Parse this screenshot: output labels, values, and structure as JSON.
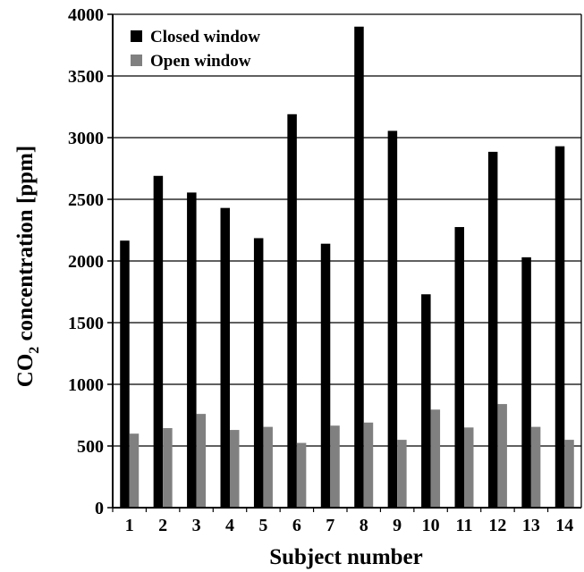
{
  "chart_data": {
    "type": "bar",
    "xlabel": "Subject number",
    "ylabel": {
      "main": "CO",
      "subscript": "2",
      "rest": " concentration [ppm]"
    },
    "ylim": [
      0,
      4000
    ],
    "yticks": [
      0,
      500,
      1000,
      1500,
      2000,
      2500,
      3000,
      3500,
      4000
    ],
    "grid": "horizontal",
    "legend_position": "top-left",
    "categories": [
      "1",
      "2",
      "3",
      "4",
      "5",
      "6",
      "7",
      "8",
      "9",
      "10",
      "11",
      "12",
      "13",
      "14"
    ],
    "series": [
      {
        "name": "Closed window",
        "color": "#000000",
        "values": [
          2165,
          2690,
          2555,
          2430,
          2185,
          3190,
          2140,
          3900,
          3055,
          1730,
          2275,
          2885,
          2030,
          2930
        ]
      },
      {
        "name": "Open window",
        "color": "#808080",
        "values": [
          600,
          645,
          760,
          630,
          655,
          525,
          665,
          690,
          550,
          795,
          650,
          840,
          655,
          550
        ]
      }
    ]
  }
}
